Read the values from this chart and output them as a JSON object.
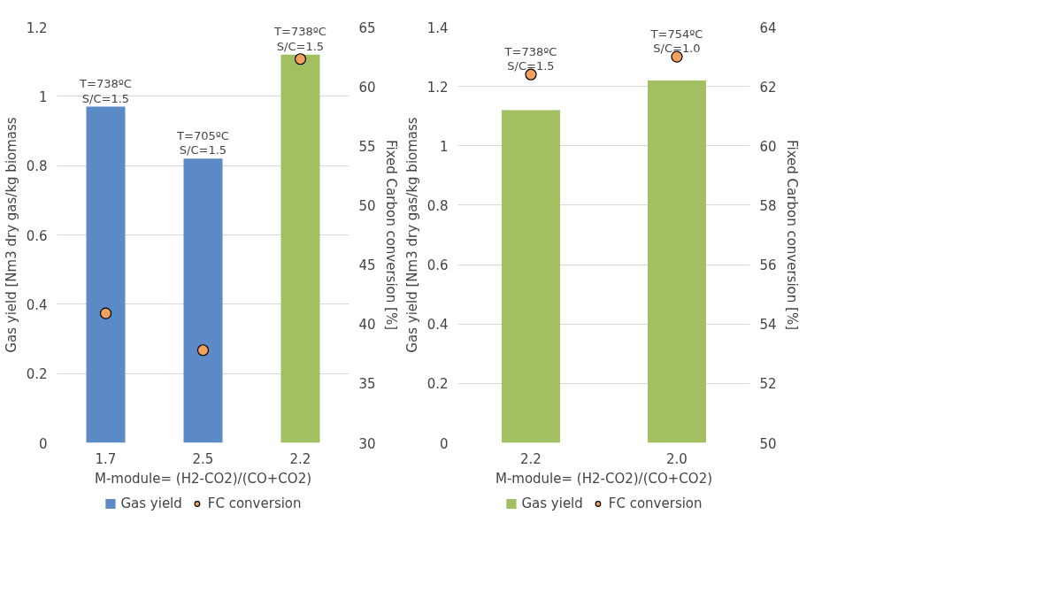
{
  "chart_data": [
    {
      "type": "bar",
      "categories": [
        "1.7",
        "2.5",
        "2.2"
      ],
      "xlabel": "M-module= (H2-CO2)/(CO+CO2)",
      "ylabel": "Gas yield [Nm3 dry gas/kg biomass",
      "y2label": "Fixed Carbon conversion [%]",
      "ylim": [
        0,
        1.2
      ],
      "yticks": [
        0,
        0.2,
        0.4,
        0.6,
        0.8,
        {
          "value": 1,
          "label": "1"
        },
        1.2
      ],
      "y2lim": [
        30,
        65
      ],
      "y2ticks": [
        30,
        35,
        40,
        45,
        50,
        55,
        60,
        65
      ],
      "grid": "y",
      "legend": "bottom",
      "series": [
        {
          "name": "Gas yield",
          "colors": [
            "#5b8ac6",
            "#5b8ac6",
            "#a2c062"
          ],
          "values": [
            0.97,
            0.82,
            1.12
          ]
        },
        {
          "name": "FC conversion",
          "type": "scatter",
          "axis": "y2",
          "marker": "circle",
          "color": "#f4a15d",
          "values": [
            40.9,
            37.8,
            62.3
          ]
        }
      ],
      "annotations": [
        {
          "text": "T=738ºC\nS/C=1.5",
          "x": "1.7",
          "y": 0.97
        },
        {
          "text": "T=705ºC\nS/C=1.5",
          "x": "2.5",
          "y": 0.82
        },
        {
          "text": "T=738ºC\nS/C=1.5",
          "x": "2.2",
          "y": 1.12
        }
      ]
    },
    {
      "type": "bar",
      "categories": [
        "2.2",
        "2.0"
      ],
      "xlabel": "M-module= (H2-CO2)/(CO+CO2)",
      "ylabel": "Gas yield [Nm3 dry gas/kg biomass",
      "y2label": "Fixed Carbon conversion [%]",
      "ylim": [
        0,
        1.4
      ],
      "yticks": [
        0,
        0.2,
        0.4,
        0.6,
        0.8,
        {
          "value": 1,
          "label": "1"
        },
        1.2,
        1.4
      ],
      "y2lim": [
        50,
        64
      ],
      "y2ticks": [
        50,
        52,
        54,
        56,
        58,
        60,
        62,
        64
      ],
      "grid": "y",
      "legend": "bottom",
      "series": [
        {
          "name": "Gas yield",
          "color": "#a2c062",
          "values": [
            1.12,
            1.22
          ]
        },
        {
          "name": "FC conversion",
          "type": "scatter",
          "axis": "y2",
          "marker": "circle",
          "color": "#f4a15d",
          "values": [
            62.4,
            63.0
          ]
        }
      ],
      "annotations": [
        {
          "text": "T=738ºC\nS/C=1.5",
          "x": "2.2",
          "y": 1.24
        },
        {
          "text": "T=754ºC\nS/C=1.0",
          "x": "2.0",
          "y": 1.3
        }
      ]
    }
  ]
}
